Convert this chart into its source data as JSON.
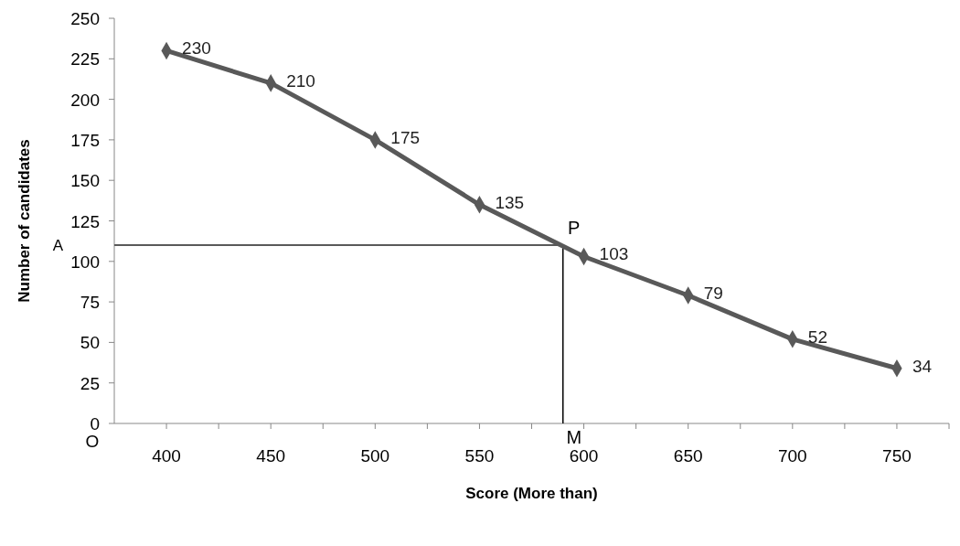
{
  "chart_data": {
    "type": "line",
    "xlabel": "Score (More than)",
    "ylabel": "Number of candidates",
    "x": [
      400,
      450,
      500,
      550,
      600,
      650,
      700,
      750
    ],
    "series": [
      {
        "color": "#595959",
        "values": [
          230,
          210,
          175,
          135,
          103,
          79,
          52,
          34
        ]
      }
    ],
    "xlim": [
      375,
      775
    ],
    "xticks": [
      400,
      450,
      500,
      550,
      600,
      650,
      700,
      750,
      {
        "value": 425,
        "label": null
      },
      {
        "value": 475,
        "label": null
      },
      {
        "value": 525,
        "label": null
      },
      {
        "value": 575,
        "label": null
      },
      {
        "value": 625,
        "label": null
      },
      {
        "value": 675,
        "label": null
      },
      {
        "value": 725,
        "label": null
      },
      {
        "value": 775,
        "label": null
      }
    ],
    "ylim": [
      0,
      250
    ],
    "yticks": [
      0,
      25,
      50,
      75,
      100,
      125,
      150,
      175,
      200,
      225,
      250
    ],
    "ref_lines": [
      {
        "axis": "y",
        "value": 110,
        "color": "#595959"
      },
      {
        "axis": "x",
        "value": 590,
        "color": "#000000"
      }
    ],
    "annotations": [
      "A",
      {
        "text": "P",
        "x": 590,
        "y": 110
      },
      {
        "text": "M",
        "x": 590,
        "y": 0
      },
      "O"
    ],
    "data_labels": true,
    "marker": "diamond",
    "grid": false
  }
}
